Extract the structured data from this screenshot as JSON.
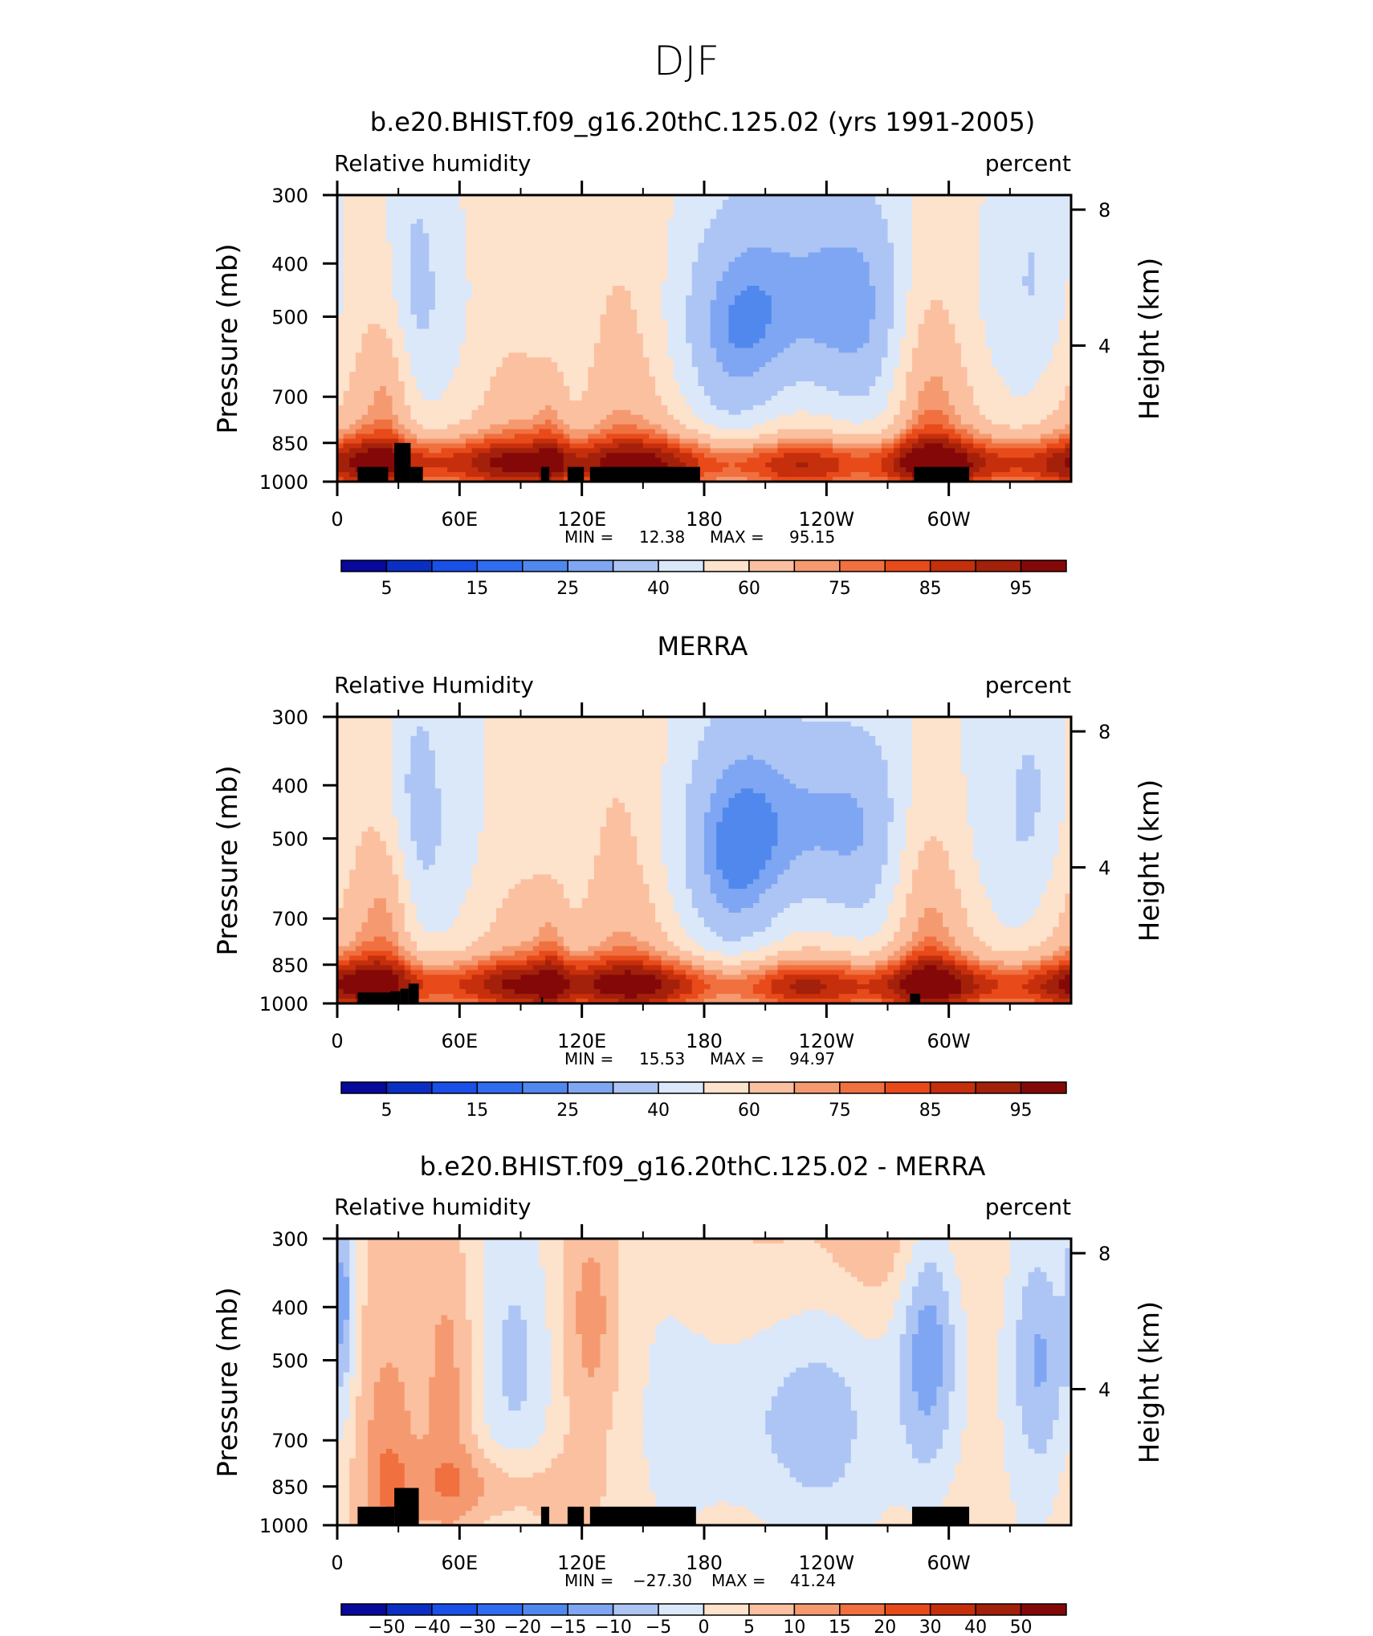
{
  "figure": {
    "title": "DJF",
    "left_label": "Pressure (mb)",
    "right_label": "Height (km)"
  },
  "chart_data": [
    {
      "type": "heatmap",
      "title": "b.e20.BHIST.f09_g16.20thC.125.02 (yrs 1991-2005)",
      "left_subtitle": "Relative humidity",
      "right_subtitle": "percent",
      "ylabel": "Pressure (mb)",
      "y2label": "Height (km)",
      "x_ticks": [
        "0",
        "60E",
        "120E",
        "180",
        "120W",
        "60W"
      ],
      "y_ticks": [
        "300",
        "400",
        "500",
        "700",
        "850",
        "1000"
      ],
      "y2_ticks": [
        "8",
        "4"
      ],
      "ylim": [
        1000,
        300
      ],
      "xlim": [
        0,
        360
      ],
      "min_label": "MIN =",
      "min": "12.38",
      "max_label": "MAX =",
      "max": "95.15",
      "colorbar_labels": [
        "5",
        "15",
        "25",
        "40",
        "60",
        "75",
        "85",
        "95"
      ],
      "terrain": [
        [
          10,
          25,
          940
        ],
        [
          28,
          36,
          850
        ],
        [
          36,
          42,
          940
        ],
        [
          100,
          104,
          940
        ],
        [
          113,
          121,
          940
        ],
        [
          124,
          178,
          940
        ],
        [
          283,
          310,
          940
        ]
      ]
    },
    {
      "type": "heatmap",
      "title": "MERRA",
      "left_subtitle": "Relative Humidity",
      "right_subtitle": "percent",
      "ylabel": "Pressure (mb)",
      "y2label": "Height (km)",
      "x_ticks": [
        "0",
        "60E",
        "120E",
        "180",
        "120W",
        "60W"
      ],
      "y_ticks": [
        "300",
        "400",
        "500",
        "700",
        "850",
        "1000"
      ],
      "y2_ticks": [
        "8",
        "4"
      ],
      "ylim": [
        1000,
        300
      ],
      "xlim": [
        0,
        360
      ],
      "min_label": "MIN =",
      "min": "15.53",
      "max_label": "MAX =",
      "max": "94.97",
      "colorbar_labels": [
        "5",
        "15",
        "25",
        "40",
        "60",
        "75",
        "85",
        "95"
      ],
      "terrain": [
        [
          10,
          26,
          955
        ],
        [
          26,
          31,
          950
        ],
        [
          31,
          35,
          940
        ],
        [
          35,
          40,
          920
        ],
        [
          100,
          101,
          975
        ],
        [
          281,
          286,
          960
        ]
      ]
    },
    {
      "type": "heatmap",
      "title": "b.e20.BHIST.f09_g16.20thC.125.02 - MERRA",
      "left_subtitle": "Relative humidity",
      "right_subtitle": "percent",
      "ylabel": "Pressure (mb)",
      "y2label": "Height (km)",
      "x_ticks": [
        "0",
        "60E",
        "120E",
        "180",
        "120W",
        "60W"
      ],
      "y_ticks": [
        "300",
        "400",
        "500",
        "700",
        "850",
        "1000"
      ],
      "y2_ticks": [
        "8",
        "4"
      ],
      "ylim": [
        1000,
        300
      ],
      "xlim": [
        0,
        360
      ],
      "min_label": "MIN =",
      "min": "−27.30",
      "max_label": "MAX =",
      "max": "41.24",
      "colorbar_labels": [
        "−50",
        "−40",
        "−30",
        "−20",
        "−15",
        "−10",
        "−5",
        "0",
        "5",
        "10",
        "15",
        "20",
        "30",
        "40",
        "50"
      ],
      "terrain": [
        [
          10,
          28,
          925
        ],
        [
          28,
          40,
          855
        ],
        [
          100,
          104,
          925
        ],
        [
          113,
          121,
          925
        ],
        [
          124,
          176,
          925
        ],
        [
          282,
          310,
          925
        ]
      ]
    }
  ],
  "colors": {
    "rh_palette": [
      "#08089c",
      "#0b2fc4",
      "#1a50e8",
      "#2f6cf0",
      "#5088ee",
      "#7fa6f3",
      "#adc5f4",
      "#dbe8fa",
      "#fde2cc",
      "#fbc0a0",
      "#f59a70",
      "#f07040",
      "#e84a1a",
      "#c62f0c",
      "#a3200a",
      "#850808"
    ],
    "diff_palette": [
      "#08089c",
      "#0b2fc4",
      "#1a50e8",
      "#2f6cf0",
      "#5088ee",
      "#7fa6f3",
      "#adc5f4",
      "#dbe8fa",
      "#fde2cc",
      "#fbc0a0",
      "#f59a70",
      "#f07040",
      "#e84a1a",
      "#c62f0c",
      "#a3200a",
      "#850808"
    ],
    "terrain": "#000000"
  }
}
